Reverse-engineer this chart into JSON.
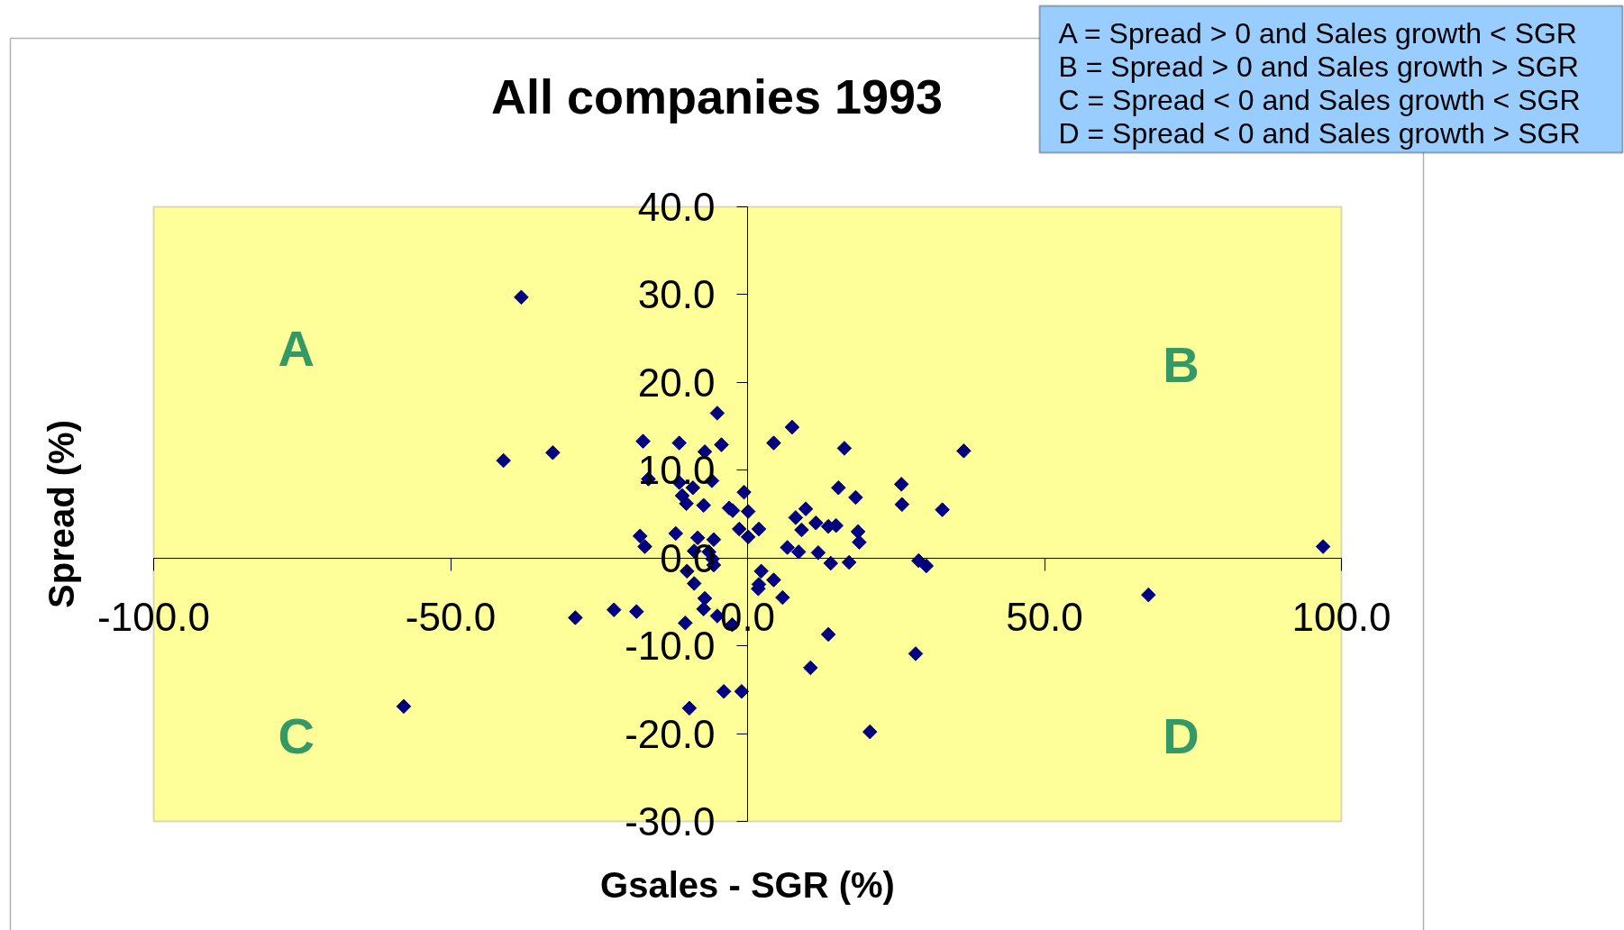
{
  "chart_data": {
    "type": "scatter",
    "title": "All companies 1993",
    "xlabel": "Gsales - SGR (%)",
    "ylabel": "Spread (%)",
    "xlim": [
      -100,
      100
    ],
    "ylim": [
      -30,
      40
    ],
    "xticks": [
      {
        "value": -100,
        "label": "-100.0"
      },
      {
        "value": -50,
        "label": "-50.0"
      },
      {
        "value": 0,
        "label": "0.0"
      },
      {
        "value": 50,
        "label": "50.0"
      },
      {
        "value": 100,
        "label": "100.0"
      }
    ],
    "yticks": [
      {
        "value": -30,
        "label": "-30.0"
      },
      {
        "value": -20,
        "label": "-20.0"
      },
      {
        "value": -10,
        "label": "-10.0"
      },
      {
        "value": 0,
        "label": "0.0"
      },
      {
        "value": 10,
        "label": "10.0"
      },
      {
        "value": 20,
        "label": "20.0"
      },
      {
        "value": 30,
        "label": "30.0"
      },
      {
        "value": 40,
        "label": "40.0"
      }
    ],
    "marker": "diamond",
    "series": [
      {
        "color": "#000080",
        "x": [
          -38.1,
          -41.1,
          -32.8,
          -57.9,
          -29.0,
          -17.6,
          -11.5,
          -7.2,
          -4.4,
          -5.1,
          -16.7,
          -11.5,
          -9.2,
          -6.0,
          -11.0,
          -10.3,
          -7.4,
          -0.6,
          -2.5,
          -3.1,
          0.1,
          -18.1,
          -17.3,
          -12.1,
          -8.4,
          -5.7,
          -9.0,
          -6.5,
          -5.9,
          -5.7,
          -10.2,
          -9.0,
          -7.2,
          -7.4,
          -5.1,
          -2.6,
          -1.4,
          0.1,
          1.9,
          -22.5,
          -18.7,
          -10.5,
          -4.0,
          -1.0,
          -9.8,
          7.5,
          4.4,
          16.3,
          36.4,
          15.3,
          25.9,
          18.2,
          26.0,
          32.8,
          9.8,
          8.1,
          9.1,
          11.5,
          13.6,
          14.9,
          18.6,
          18.8,
          6.7,
          8.6,
          11.9,
          14.0,
          17.1,
          28.8,
          30.1,
          2.3,
          4.4,
          1.9,
          1.8,
          5.9,
          13.6,
          28.3,
          10.6,
          20.6,
          67.5,
          96.9
        ],
        "values": [
          29.7,
          11.1,
          12.0,
          -16.9,
          -6.8,
          13.3,
          13.1,
          12.1,
          12.9,
          16.5,
          9.0,
          8.6,
          8.0,
          8.8,
          7.1,
          6.2,
          6.0,
          7.5,
          5.4,
          5.7,
          5.3,
          2.5,
          1.3,
          2.8,
          2.3,
          2.1,
          0.8,
          0.7,
          -0.1,
          -0.8,
          -1.5,
          -2.9,
          -4.6,
          -5.8,
          -6.6,
          -7.6,
          3.3,
          2.4,
          3.3,
          -5.9,
          -6.1,
          -7.4,
          -15.2,
          -15.2,
          -17.1,
          14.9,
          13.1,
          12.5,
          12.2,
          8.0,
          8.4,
          6.9,
          6.1,
          5.5,
          5.6,
          4.6,
          3.2,
          4.0,
          3.6,
          3.7,
          3.0,
          1.8,
          1.2,
          0.7,
          0.6,
          -0.6,
          -0.5,
          -0.3,
          -0.9,
          -1.5,
          -2.5,
          -3.0,
          -3.5,
          -4.5,
          -8.7,
          -10.9,
          -12.5,
          -19.8,
          -4.2,
          1.3
        ]
      }
    ],
    "annotations": [
      "A = Spread > 0 and Sales growth < SGR",
      "B = Spread > 0 and Sales growth > SGR",
      "C = Spread < 0 and Sales growth < SGR",
      "D = Spread < 0 and Sales growth > SGR",
      "A",
      "B",
      "C",
      "D"
    ]
  }
}
